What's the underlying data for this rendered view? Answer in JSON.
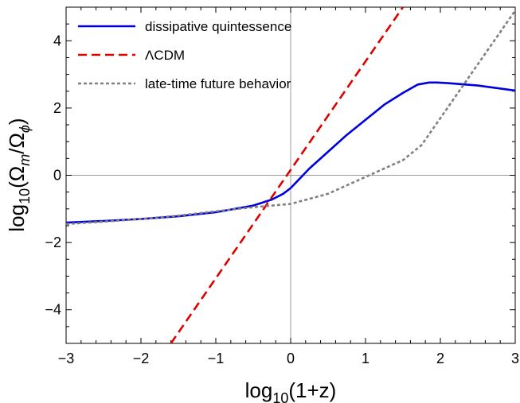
{
  "chart_data": {
    "type": "line",
    "xlabel": "log10(1+z)",
    "ylabel": "log10(Ωm/Ωφ)",
    "xlim": [
      -3,
      3
    ],
    "ylim": [
      -5,
      5
    ],
    "x_ticks": [
      -3,
      -2,
      -1,
      0,
      1,
      2,
      3
    ],
    "x_tick_labels": [
      "−3",
      "−2",
      "−1",
      "0",
      "1",
      "2",
      "3"
    ],
    "y_ticks": [
      -4,
      -2,
      0,
      2,
      4
    ],
    "y_tick_labels": [
      "−4",
      "−2",
      "0",
      "2",
      "4"
    ],
    "grid": false,
    "zero_axes": true,
    "legend_position": "top-left",
    "series": [
      {
        "name": "dissipative quintessence",
        "color": "#0000dd",
        "style": "solid",
        "x": [
          -3.0,
          -2.5,
          -2.0,
          -1.5,
          -1.0,
          -0.5,
          -0.25,
          -0.1,
          0.0,
          0.1,
          0.25,
          0.5,
          0.75,
          1.0,
          1.25,
          1.5,
          1.7,
          1.85,
          1.95,
          2.1,
          2.5,
          3.0
        ],
        "y": [
          -1.41,
          -1.36,
          -1.3,
          -1.22,
          -1.1,
          -0.9,
          -0.72,
          -0.55,
          -0.38,
          -0.15,
          0.2,
          0.7,
          1.2,
          1.65,
          2.1,
          2.45,
          2.7,
          2.76,
          2.76,
          2.74,
          2.67,
          2.52
        ]
      },
      {
        "name": "ΛCDM",
        "color": "#dd0000",
        "style": "dashed",
        "x": [
          -1.6,
          1.5
        ],
        "y": [
          -5.0,
          5.0
        ]
      },
      {
        "name": "late-time future behavior",
        "color": "#808080",
        "style": "dotted",
        "x": [
          -3.0,
          -2.5,
          -2.0,
          -1.5,
          -1.0,
          -0.5,
          0.0,
          0.5,
          1.0,
          1.5,
          1.75,
          2.0,
          2.25,
          2.5,
          2.75,
          3.0
        ],
        "y": [
          -1.45,
          -1.38,
          -1.3,
          -1.2,
          -1.07,
          -0.95,
          -0.85,
          -0.55,
          -0.05,
          0.45,
          0.9,
          1.7,
          2.5,
          3.3,
          4.1,
          4.9
        ]
      }
    ]
  }
}
